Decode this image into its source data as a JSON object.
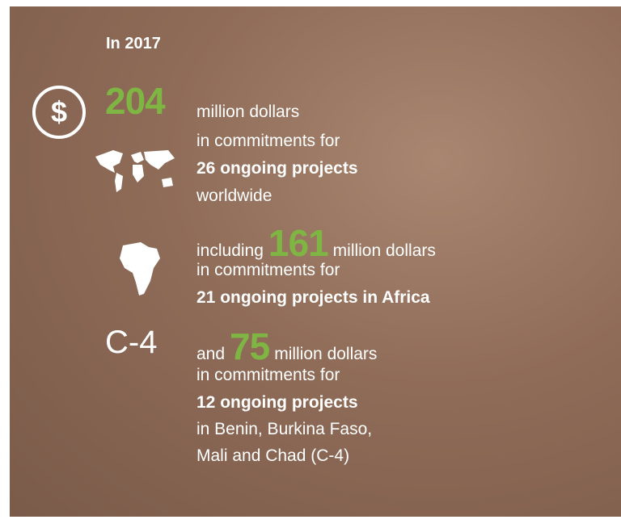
{
  "header": {
    "title": "In 2017"
  },
  "blocks": [
    {
      "icon": "$",
      "amount": "204",
      "unit": "million dollars",
      "line2": "in commitments for",
      "projects": "26 ongoing projects",
      "scope": "worldwide"
    },
    {
      "prefix": "including",
      "amount": "161",
      "unit": "million dollars",
      "line2": "in commitments for",
      "projects": "21 ongoing projects in Africa"
    },
    {
      "icon": "C-4",
      "prefix": "and",
      "amount": "75",
      "unit": "million dollars",
      "line2": "in commitments for",
      "projects": "12 ongoing projects",
      "scope": "in Benin, Burkina Faso,",
      "scope2": "Mali and Chad (C-4)"
    }
  ]
}
